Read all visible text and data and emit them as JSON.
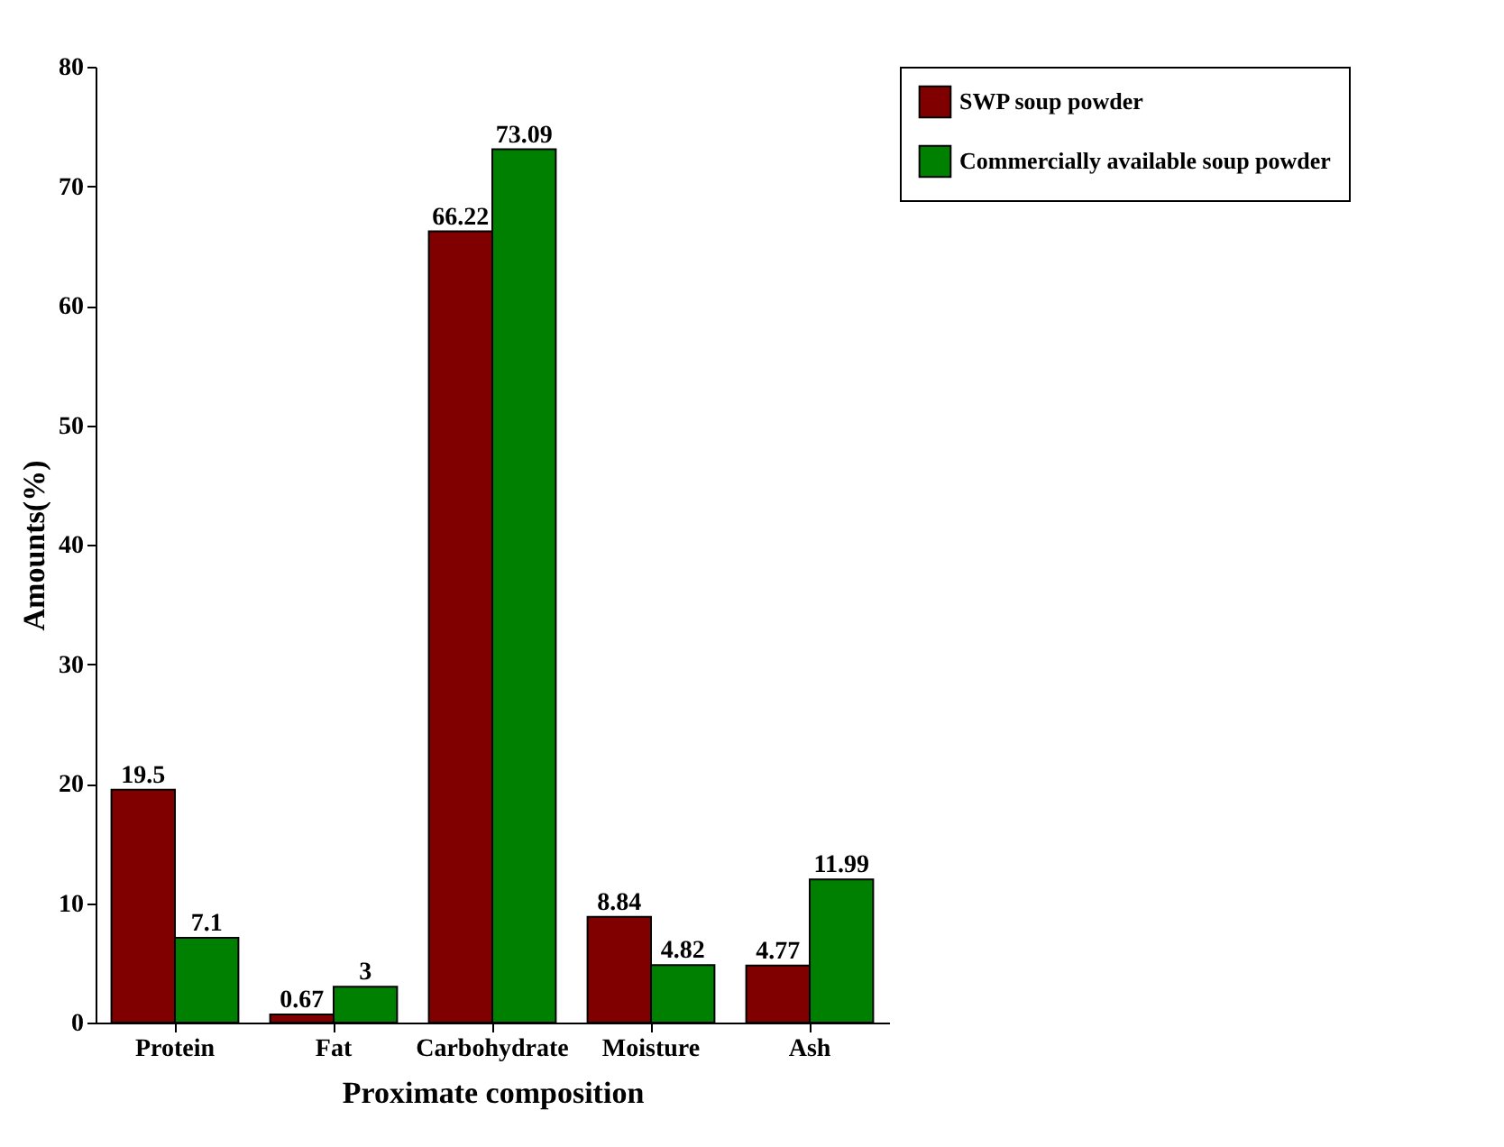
{
  "chart_data": {
    "type": "bar",
    "xlabel": "Proximate composition",
    "ylabel": "Amounts(%)",
    "categories": [
      "Protein",
      "Fat",
      "Carbohydrate",
      "Moisture",
      "Ash"
    ],
    "series": [
      {
        "name": "SWP soup powder",
        "color": "#800000",
        "values": [
          19.5,
          0.67,
          66.22,
          8.84,
          4.77
        ]
      },
      {
        "name": "Commercially available soup powder",
        "color": "#008000",
        "values": [
          7.1,
          3,
          73.09,
          4.82,
          11.99
        ]
      }
    ],
    "ylim": [
      0,
      80
    ],
    "yticks": [
      0,
      10,
      20,
      30,
      40,
      50,
      60,
      70,
      80
    ],
    "grid": false,
    "legend": "top right",
    "data_labels": true
  }
}
